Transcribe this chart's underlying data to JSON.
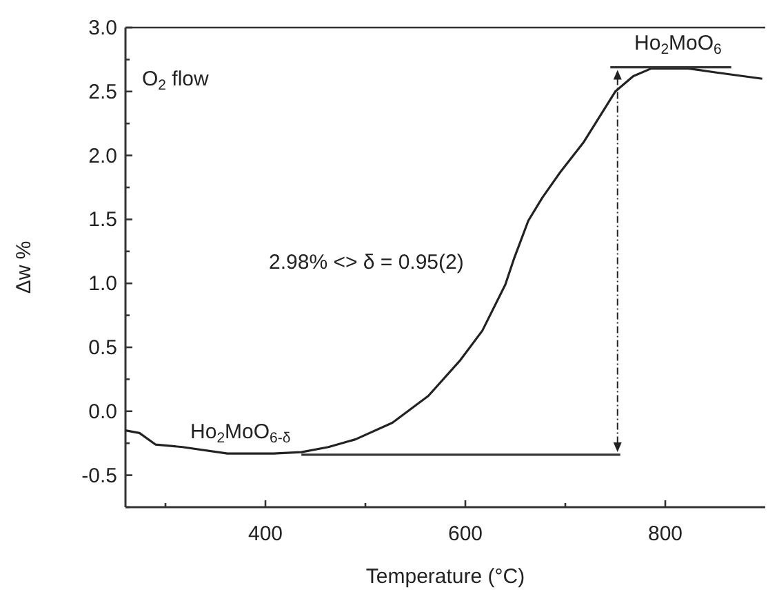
{
  "chart_data": {
    "type": "line",
    "xlabel": "Temperature (°C)",
    "ylabel": "Δw %",
    "xlim": [
      260,
      900
    ],
    "xticks": [
      {
        "value": 300,
        "label": null
      },
      400,
      {
        "value": 500,
        "label": null
      },
      600,
      {
        "value": 700,
        "label": null
      },
      800
    ],
    "ylim": [
      -0.75,
      3.0
    ],
    "yticks": [
      {
        "value": -0.75,
        "label": null
      },
      {
        "value": -0.5,
        "label": "-0.5"
      },
      {
        "value": -0.25,
        "label": null
      },
      {
        "value": 0,
        "label": "0.0"
      },
      {
        "value": 0.25,
        "label": null
      },
      {
        "value": 0.5,
        "label": "0.5"
      },
      {
        "value": 0.75,
        "label": null
      },
      {
        "value": 1,
        "label": "1.0"
      },
      {
        "value": 1.25,
        "label": null
      },
      {
        "value": 1.5,
        "label": "1.5"
      },
      {
        "value": 1.75,
        "label": null
      },
      {
        "value": 2,
        "label": "2.0"
      },
      {
        "value": 2.25,
        "label": null
      },
      {
        "value": 2.5,
        "label": "2.5"
      },
      {
        "value": 2.75,
        "label": null
      },
      {
        "value": 3,
        "label": "3.0"
      }
    ],
    "grid": false,
    "line_style": "solid",
    "series": [
      {
        "color": "#222222",
        "x": [
          260,
          274,
          290,
          317,
          362,
          408,
          436,
          463,
          490,
          527,
          563,
          595,
          617,
          640,
          649,
          663,
          677,
          695,
          718,
          750,
          768,
          786,
          823,
          850,
          897
        ],
        "values": [
          -0.15,
          -0.17,
          -0.26,
          -0.28,
          -0.33,
          -0.33,
          -0.32,
          -0.28,
          -0.22,
          -0.09,
          0.12,
          0.4,
          0.63,
          0.99,
          1.2,
          1.49,
          1.67,
          1.87,
          2.1,
          2.5,
          2.62,
          2.68,
          2.68,
          2.65,
          2.6
        ]
      },
      {
        "color": "#333333",
        "x": [
          436,
          755
        ],
        "values": [
          -0.34,
          -0.34
        ]
      },
      {
        "color": "#333333",
        "x": [
          745,
          866
        ],
        "values": [
          2.69,
          2.69
        ]
      }
    ],
    "annotations": [
      "O$_{2}$ flow",
      "2.98% <> δ = 0.95(2)",
      "Ho$_{2}$MoO$_{6-δ}$",
      "Ho$_{2}$MoO$_{6}$"
    ]
  }
}
